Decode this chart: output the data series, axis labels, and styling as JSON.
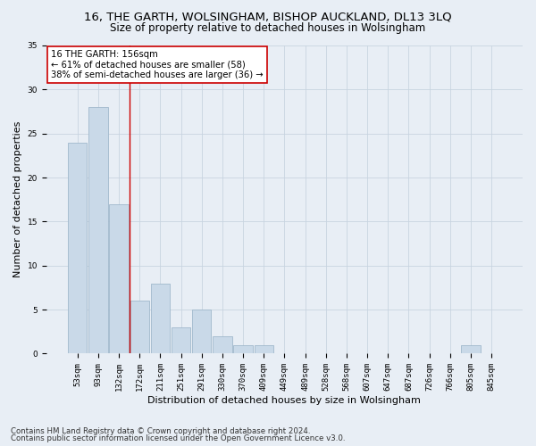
{
  "title": "16, THE GARTH, WOLSINGHAM, BISHOP AUCKLAND, DL13 3LQ",
  "subtitle": "Size of property relative to detached houses in Wolsingham",
  "xlabel": "Distribution of detached houses by size in Wolsingham",
  "ylabel": "Number of detached properties",
  "footnote1": "Contains HM Land Registry data © Crown copyright and database right 2024.",
  "footnote2": "Contains public sector information licensed under the Open Government Licence v3.0.",
  "bar_labels": [
    "53sqm",
    "93sqm",
    "132sqm",
    "172sqm",
    "211sqm",
    "251sqm",
    "291sqm",
    "330sqm",
    "370sqm",
    "409sqm",
    "449sqm",
    "489sqm",
    "528sqm",
    "568sqm",
    "607sqm",
    "647sqm",
    "687sqm",
    "726sqm",
    "766sqm",
    "805sqm",
    "845sqm"
  ],
  "bar_values": [
    24,
    28,
    17,
    6,
    8,
    3,
    5,
    2,
    1,
    1,
    0,
    0,
    0,
    0,
    0,
    0,
    0,
    0,
    0,
    1,
    0
  ],
  "bar_color": "#c9d9e8",
  "bar_edgecolor": "#a0b8cc",
  "vline_x_index": 2.5,
  "vline_color": "#cc0000",
  "annotation_text": "16 THE GARTH: 156sqm\n← 61% of detached houses are smaller (58)\n38% of semi-detached houses are larger (36) →",
  "annotation_box_edgecolor": "#cc0000",
  "annotation_box_facecolor": "#ffffff",
  "ylim": [
    0,
    35
  ],
  "yticks": [
    0,
    5,
    10,
    15,
    20,
    25,
    30,
    35
  ],
  "grid_color": "#c8d4e0",
  "background_color": "#e8eef5",
  "axes_bg_color": "#e8eef5",
  "title_fontsize": 9.5,
  "subtitle_fontsize": 8.5,
  "xlabel_fontsize": 8,
  "ylabel_fontsize": 8,
  "annot_fontsize": 7.2,
  "tick_fontsize": 6.5,
  "footnote_fontsize": 6.2
}
